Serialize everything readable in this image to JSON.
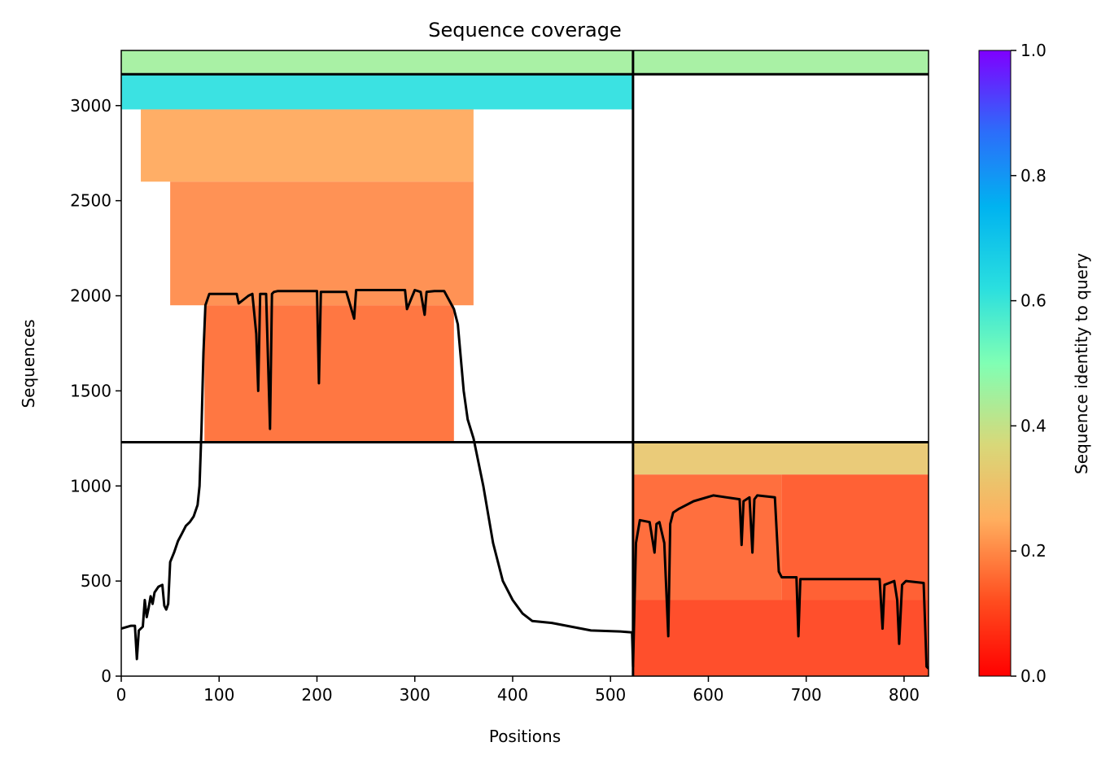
{
  "chart_data": {
    "type": "heatmap",
    "title": "Sequence coverage",
    "xlabel": "Positions",
    "ylabel": "Sequences",
    "colorbar_label": "Sequence identity to query",
    "colormap": "rainbow_r",
    "xlim": [
      0,
      825
    ],
    "ylim": [
      0,
      3290
    ],
    "x_ticks": [
      0,
      100,
      200,
      300,
      400,
      500,
      600,
      700,
      800
    ],
    "y_ticks": [
      0,
      500,
      1000,
      1500,
      2000,
      2500,
      3000
    ],
    "colorbar_ticks": [
      0.0,
      0.2,
      0.4,
      0.6,
      0.8,
      1.0
    ],
    "colorbar_tick_labels": [
      "0.0",
      "0.2",
      "0.4",
      "0.6",
      "0.8",
      "1.0"
    ],
    "colorbar_range": [
      0.0,
      1.0
    ],
    "x_tick_labels": [
      "0",
      "100",
      "200",
      "300",
      "400",
      "500",
      "600",
      "700",
      "800"
    ],
    "y_tick_labels": [
      "0",
      "500",
      "1000",
      "1500",
      "2000",
      "2500",
      "3000"
    ],
    "grid": false,
    "segment_boundary_x": 523,
    "block_boundaries_y": [
      1230,
      3165
    ],
    "blocks": [
      {
        "x_range": [
          0,
          523
        ],
        "y_range": [
          3165,
          3290
        ],
        "identity": 0.45
      },
      {
        "x_range": [
          523,
          825
        ],
        "y_range": [
          3165,
          3290
        ],
        "identity": 0.45
      },
      {
        "x_range": [
          0,
          523
        ],
        "y_range": [
          2980,
          3165
        ],
        "identity": 0.62
      },
      {
        "x_range": [
          20,
          360
        ],
        "y_range": [
          2600,
          2980
        ],
        "identity": 0.24
      },
      {
        "x_range": [
          50,
          360
        ],
        "y_range": [
          1950,
          2600
        ],
        "identity": 0.2
      },
      {
        "x_range": [
          85,
          340
        ],
        "y_range": [
          1230,
          1950
        ],
        "identity": 0.16
      },
      {
        "x_range": [
          523,
          825
        ],
        "y_range": [
          1060,
          1230
        ],
        "identity": 0.32
      },
      {
        "x_range": [
          523,
          675
        ],
        "y_range": [
          400,
          1060
        ],
        "identity": 0.15
      },
      {
        "x_range": [
          675,
          825
        ],
        "y_range": [
          400,
          1060
        ],
        "identity": 0.13
      },
      {
        "x_range": [
          523,
          825
        ],
        "y_range": [
          0,
          400
        ],
        "identity": 0.1
      }
    ],
    "coverage_line": {
      "x": [
        0,
        10,
        14,
        16,
        18,
        22,
        24,
        26,
        28,
        30,
        32,
        34,
        38,
        42,
        44,
        46,
        48,
        50,
        54,
        58,
        62,
        66,
        70,
        74,
        78,
        80,
        82,
        84,
        86,
        90,
        100,
        118,
        120,
        130,
        134,
        138,
        140,
        142,
        148,
        152,
        154,
        156,
        160,
        170,
        180,
        200,
        202,
        204,
        230,
        238,
        240,
        250,
        290,
        292,
        300,
        306,
        310,
        312,
        320,
        330,
        340,
        344,
        350,
        354,
        360,
        370,
        380,
        390,
        400,
        410,
        420,
        440,
        480,
        510,
        522,
        523,
        526,
        530,
        540,
        545,
        547,
        550,
        555,
        559,
        561,
        564,
        570,
        585,
        605,
        632,
        634,
        636,
        642,
        645,
        647,
        650,
        668,
        672,
        675,
        690,
        692,
        694,
        740,
        775,
        778,
        780,
        790,
        793,
        795,
        798,
        802,
        820,
        823,
        825
      ],
      "y": [
        250,
        265,
        265,
        90,
        240,
        260,
        400,
        310,
        360,
        420,
        380,
        440,
        470,
        480,
        370,
        350,
        380,
        600,
        650,
        710,
        750,
        790,
        810,
        840,
        900,
        1000,
        1300,
        1700,
        1950,
        2010,
        2010,
        2010,
        1960,
        2000,
        2010,
        1800,
        1500,
        2010,
        2010,
        1300,
        2010,
        2020,
        2025,
        2025,
        2025,
        2025,
        1540,
        2020,
        2020,
        1880,
        2030,
        2030,
        2030,
        1930,
        2030,
        2020,
        1900,
        2020,
        2025,
        2025,
        1930,
        1850,
        1500,
        1350,
        1250,
        1000,
        700,
        500,
        400,
        330,
        290,
        280,
        240,
        235,
        230,
        50,
        700,
        820,
        810,
        650,
        800,
        810,
        700,
        210,
        800,
        860,
        880,
        920,
        950,
        930,
        690,
        920,
        940,
        650,
        930,
        950,
        940,
        550,
        520,
        520,
        210,
        510,
        510,
        510,
        250,
        480,
        500,
        400,
        170,
        480,
        500,
        490,
        50,
        40
      ]
    }
  }
}
